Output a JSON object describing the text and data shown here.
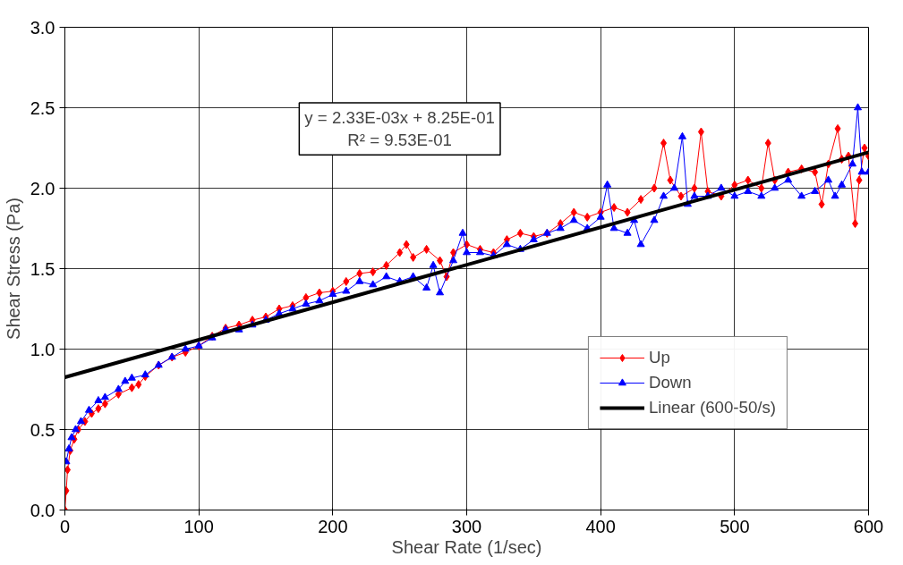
{
  "chart_data": {
    "type": "line",
    "xlabel": "Shear Rate (1/sec)",
    "ylabel": "Shear Stress (Pa)",
    "xlim": [
      0,
      600
    ],
    "ylim": [
      0,
      3.0
    ],
    "xticks": [
      0,
      100,
      200,
      300,
      400,
      500,
      600
    ],
    "yticks": [
      {
        "value": 0,
        "label": "0.0"
      },
      {
        "value": 0.5,
        "label": "0.5"
      },
      {
        "value": 1.0,
        "label": "1.0"
      },
      {
        "value": 1.5,
        "label": "1.5"
      },
      {
        "value": 2.0,
        "label": "2.0"
      },
      {
        "value": 2.5,
        "label": "2.5"
      },
      {
        "value": 3.0,
        "label": "3.0"
      }
    ],
    "grid": true,
    "legend": "bottom right",
    "annotations": [
      "y = 2.33E-03x + 8.25E-01\nR² = 9.53E-01"
    ],
    "series": [
      {
        "name": "Up",
        "color": "#ff0000",
        "marker": "diamond",
        "x": [
          0,
          1,
          2,
          4,
          7,
          10,
          15,
          20,
          25,
          30,
          40,
          50,
          55,
          60,
          70,
          80,
          90,
          100,
          110,
          120,
          130,
          140,
          150,
          160,
          170,
          180,
          190,
          200,
          210,
          220,
          230,
          240,
          250,
          255,
          260,
          270,
          280,
          285,
          290,
          300,
          310,
          320,
          330,
          340,
          350,
          360,
          370,
          380,
          390,
          400,
          410,
          420,
          430,
          440,
          447,
          452,
          460,
          470,
          475,
          480,
          490,
          500,
          510,
          520,
          525,
          530,
          540,
          550,
          560,
          565,
          570,
          577,
          580,
          585,
          590,
          593,
          597,
          600
        ],
        "values": [
          0,
          0.12,
          0.25,
          0.37,
          0.44,
          0.5,
          0.55,
          0.6,
          0.63,
          0.66,
          0.72,
          0.76,
          0.78,
          0.83,
          0.9,
          0.95,
          0.98,
          1.02,
          1.08,
          1.13,
          1.15,
          1.18,
          1.2,
          1.25,
          1.27,
          1.32,
          1.35,
          1.36,
          1.42,
          1.47,
          1.48,
          1.52,
          1.6,
          1.65,
          1.57,
          1.62,
          1.55,
          1.45,
          1.6,
          1.65,
          1.62,
          1.6,
          1.68,
          1.72,
          1.7,
          1.72,
          1.78,
          1.85,
          1.82,
          1.85,
          1.88,
          1.85,
          1.93,
          2.0,
          2.28,
          2.05,
          1.95,
          2.0,
          2.35,
          1.98,
          1.95,
          2.02,
          2.05,
          2.0,
          2.28,
          2.05,
          2.1,
          2.12,
          2.1,
          1.9,
          2.15,
          2.37,
          2.18,
          2.2,
          1.78,
          2.05,
          2.25,
          2.2
        ]
      },
      {
        "name": "Down",
        "color": "#0000ff",
        "marker": "triangle",
        "x": [
          1,
          3,
          5,
          8,
          12,
          18,
          25,
          30,
          40,
          45,
          50,
          60,
          70,
          80,
          90,
          100,
          110,
          120,
          130,
          140,
          150,
          160,
          170,
          180,
          190,
          200,
          210,
          220,
          230,
          240,
          250,
          260,
          270,
          275,
          280,
          290,
          297,
          300,
          310,
          320,
          330,
          340,
          350,
          360,
          370,
          380,
          390,
          400,
          405,
          410,
          420,
          425,
          430,
          440,
          447,
          455,
          461,
          465,
          470,
          480,
          490,
          500,
          510,
          520,
          530,
          540,
          550,
          560,
          570,
          575,
          580,
          588,
          592,
          595,
          600
        ],
        "values": [
          0.3,
          0.38,
          0.45,
          0.5,
          0.55,
          0.62,
          0.68,
          0.7,
          0.75,
          0.8,
          0.82,
          0.84,
          0.9,
          0.95,
          1.0,
          1.02,
          1.07,
          1.12,
          1.12,
          1.15,
          1.18,
          1.22,
          1.25,
          1.28,
          1.3,
          1.34,
          1.36,
          1.42,
          1.4,
          1.45,
          1.42,
          1.45,
          1.38,
          1.52,
          1.35,
          1.55,
          1.72,
          1.6,
          1.6,
          1.58,
          1.65,
          1.62,
          1.68,
          1.72,
          1.75,
          1.8,
          1.75,
          1.82,
          2.02,
          1.75,
          1.72,
          1.8,
          1.65,
          1.8,
          1.95,
          2.0,
          2.32,
          1.9,
          1.95,
          1.95,
          2.0,
          1.95,
          1.98,
          1.95,
          2.0,
          2.05,
          1.95,
          1.98,
          2.05,
          1.95,
          2.02,
          2.15,
          2.5,
          2.1,
          2.1
        ]
      },
      {
        "name": "Linear (600-50/s)",
        "color": "#000000",
        "marker": "none",
        "x": [
          0,
          600
        ],
        "values": [
          0.825,
          2.223
        ]
      }
    ]
  }
}
